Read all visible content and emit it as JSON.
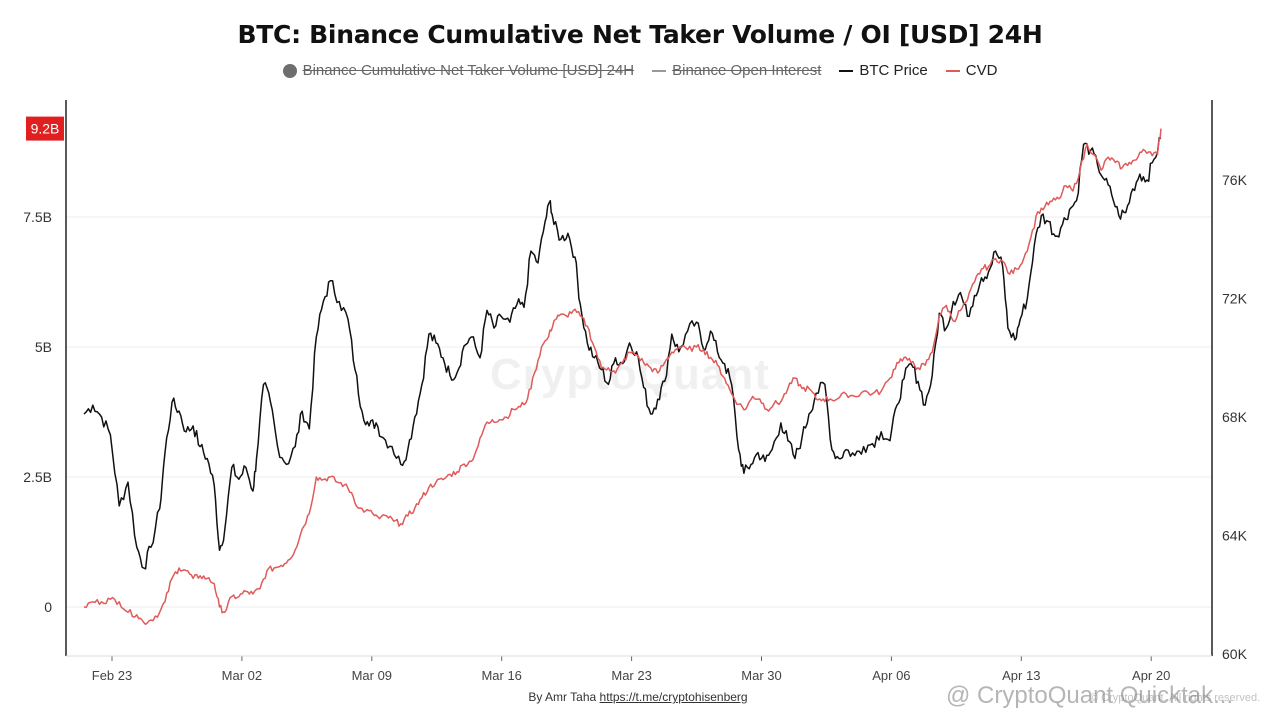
{
  "chart_data": {
    "type": "line",
    "title": "BTC: Binance Cumulative Net Taker Volume / OI [USD] 24H",
    "legend": [
      {
        "label": "Binance Cumulative Net Taker Volume [USD] 24H",
        "color": "#6e6e6e",
        "marker": "dot",
        "hidden": true
      },
      {
        "label": "Binance Open Interest",
        "color": "#999999",
        "marker": "line",
        "hidden": true
      },
      {
        "label": "BTC Price",
        "color": "#111111",
        "marker": "line",
        "hidden": false
      },
      {
        "label": "CVD",
        "color": "#e05a5a",
        "marker": "line",
        "hidden": false
      }
    ],
    "x_ticks": [
      "Feb 23",
      "Mar 02",
      "Mar 09",
      "Mar 16",
      "Mar 23",
      "Mar 30",
      "Apr 06",
      "Apr 13",
      "Apr 20"
    ],
    "x_range_days": [
      -0.5,
      60
    ],
    "y_left": {
      "ticks": [
        "0",
        "2.5B",
        "5B",
        "7.5B"
      ],
      "tick_values": [
        0,
        2.5,
        5,
        7.5
      ],
      "range": [
        -1,
        9.8
      ],
      "unit": "B USD",
      "last_value_label": "9.2B",
      "last_value": 9.2
    },
    "y_right": {
      "ticks": [
        "60K",
        "64K",
        "68K",
        "72K",
        "76K"
      ],
      "tick_values": [
        60,
        64,
        68,
        72,
        76
      ],
      "range": [
        60,
        78.2
      ],
      "unit": "K USD"
    },
    "series": [
      {
        "name": "BTC Price",
        "axis": "right",
        "color": "#111111",
        "points": [
          [
            0,
            68.1
          ],
          [
            0.5,
            68.4
          ],
          [
            1,
            68.0
          ],
          [
            1.5,
            67.4
          ],
          [
            2,
            65.0
          ],
          [
            2.5,
            65.8
          ],
          [
            3,
            63.6
          ],
          [
            3.4,
            62.9
          ],
          [
            3.8,
            63.6
          ],
          [
            4.3,
            64.9
          ],
          [
            4.6,
            66.8
          ],
          [
            5,
            68.5
          ],
          [
            5.4,
            68.2
          ],
          [
            5.8,
            67.5
          ],
          [
            6.2,
            67.7
          ],
          [
            6.6,
            67.0
          ],
          [
            7,
            66.6
          ],
          [
            7.4,
            65.7
          ],
          [
            7.7,
            63.5
          ],
          [
            8,
            64.2
          ],
          [
            8.4,
            66.3
          ],
          [
            8.8,
            65.9
          ],
          [
            9.2,
            66.3
          ],
          [
            9.6,
            65.5
          ],
          [
            9.8,
            66.6
          ],
          [
            10.2,
            69.1
          ],
          [
            10.6,
            68.5
          ],
          [
            11,
            67.0
          ],
          [
            11.5,
            66.4
          ],
          [
            12,
            67.0
          ],
          [
            12.4,
            68.2
          ],
          [
            12.8,
            67.6
          ],
          [
            13.2,
            70.7
          ],
          [
            13.6,
            71.9
          ],
          [
            14,
            72.6
          ],
          [
            14.5,
            71.9
          ],
          [
            15,
            71.3
          ],
          [
            15.4,
            69.6
          ],
          [
            15.8,
            68.2
          ],
          [
            16.2,
            67.7
          ],
          [
            16.6,
            67.8
          ],
          [
            17,
            67.3
          ],
          [
            17.5,
            67.0
          ],
          [
            18,
            66.4
          ],
          [
            18.4,
            66.9
          ],
          [
            18.8,
            68.0
          ],
          [
            19.2,
            69.1
          ],
          [
            19.6,
            70.8
          ],
          [
            20,
            70.5
          ],
          [
            20.4,
            70.0
          ],
          [
            20.8,
            69.4
          ],
          [
            21.2,
            69.5
          ],
          [
            21.6,
            70.4
          ],
          [
            22,
            70.7
          ],
          [
            22.5,
            70.0
          ],
          [
            22.9,
            71.6
          ],
          [
            23.3,
            71.0
          ],
          [
            23.7,
            71.4
          ],
          [
            24.2,
            71.2
          ],
          [
            24.6,
            71.8
          ],
          [
            25,
            71.7
          ],
          [
            25.4,
            73.6
          ],
          [
            25.8,
            73.2
          ],
          [
            26.2,
            74.6
          ],
          [
            26.5,
            75.3
          ],
          [
            26.7,
            74.5
          ],
          [
            27.1,
            74.0
          ],
          [
            27.5,
            74.2
          ],
          [
            27.9,
            73.4
          ],
          [
            28.2,
            71.8
          ],
          [
            28.6,
            70.5
          ],
          [
            29,
            70.0
          ],
          [
            29.4,
            69.6
          ],
          [
            29.8,
            69.1
          ],
          [
            30.2,
            70.0
          ],
          [
            30.6,
            69.8
          ],
          [
            31,
            70.5
          ],
          [
            31.4,
            70.2
          ],
          [
            31.8,
            69.0
          ],
          [
            32.2,
            68.1
          ],
          [
            32.6,
            68.6
          ],
          [
            33,
            69.2
          ],
          [
            33.4,
            70.8
          ],
          [
            33.8,
            70.2
          ],
          [
            34.3,
            70.9
          ],
          [
            34.8,
            71.2
          ],
          [
            35.2,
            70.3
          ],
          [
            35.6,
            70.9
          ],
          [
            36,
            70.2
          ],
          [
            36.4,
            69.8
          ],
          [
            36.8,
            69.1
          ],
          [
            37.2,
            66.9
          ],
          [
            37.5,
            66.1
          ],
          [
            37.9,
            66.4
          ],
          [
            38.3,
            66.8
          ],
          [
            38.7,
            66.5
          ],
          [
            39.1,
            66.9
          ],
          [
            39.6,
            67.8
          ],
          [
            40,
            67.2
          ],
          [
            40.4,
            66.6
          ],
          [
            40.8,
            67.3
          ],
          [
            41.2,
            68.1
          ],
          [
            41.6,
            68.8
          ],
          [
            42.1,
            69.1
          ],
          [
            42.5,
            66.9
          ],
          [
            42.9,
            66.6
          ],
          [
            43.3,
            66.9
          ],
          [
            43.8,
            66.7
          ],
          [
            44.3,
            67.0
          ],
          [
            44.8,
            67.1
          ],
          [
            45.3,
            67.5
          ],
          [
            45.8,
            67.2
          ],
          [
            46.2,
            68.4
          ],
          [
            46.6,
            69.3
          ],
          [
            47,
            69.8
          ],
          [
            47.4,
            69.2
          ],
          [
            47.8,
            68.4
          ],
          [
            48.2,
            69.4
          ],
          [
            48.6,
            71.5
          ],
          [
            49,
            71.0
          ],
          [
            49.4,
            71.9
          ],
          [
            49.8,
            72.2
          ],
          [
            50.2,
            71.4
          ],
          [
            50.6,
            72.1
          ],
          [
            51,
            72.7
          ],
          [
            51.4,
            72.9
          ],
          [
            51.8,
            73.6
          ],
          [
            52.2,
            73.1
          ],
          [
            52.5,
            71.0
          ],
          [
            52.9,
            70.6
          ],
          [
            53.2,
            71.3
          ],
          [
            53.6,
            72.0
          ],
          [
            54,
            73.8
          ],
          [
            54.4,
            74.8
          ],
          [
            54.8,
            74.6
          ],
          [
            55.2,
            74.1
          ],
          [
            55.6,
            74.5
          ],
          [
            56,
            75.0
          ],
          [
            56.4,
            75.3
          ],
          [
            56.8,
            77.2
          ],
          [
            57.2,
            77.0
          ],
          [
            57.6,
            76.5
          ],
          [
            58,
            76.0
          ],
          [
            58.4,
            75.5
          ],
          [
            58.8,
            74.8
          ],
          [
            59.2,
            74.9
          ],
          [
            59.6,
            75.7
          ],
          [
            60,
            76.2
          ],
          [
            60.4,
            76.0
          ],
          [
            60.8,
            76.7
          ],
          [
            61.2,
            77.4
          ]
        ]
      },
      {
        "name": "CVD",
        "axis": "left",
        "color": "#e05a5a",
        "points": [
          [
            0,
            0.0
          ],
          [
            0.5,
            0.1
          ],
          [
            1,
            0.1
          ],
          [
            1.5,
            0.15
          ],
          [
            2,
            0.1
          ],
          [
            2.5,
            -0.1
          ],
          [
            3,
            -0.15
          ],
          [
            3.4,
            -0.3
          ],
          [
            3.8,
            -0.25
          ],
          [
            4.3,
            -0.1
          ],
          [
            4.6,
            0.1
          ],
          [
            5,
            0.55
          ],
          [
            5.4,
            0.75
          ],
          [
            5.8,
            0.7
          ],
          [
            6.2,
            0.55
          ],
          [
            6.6,
            0.6
          ],
          [
            7,
            0.55
          ],
          [
            7.4,
            0.45
          ],
          [
            7.7,
            0.0
          ],
          [
            8,
            -0.1
          ],
          [
            8.4,
            0.2
          ],
          [
            8.8,
            0.2
          ],
          [
            9.2,
            0.3
          ],
          [
            9.6,
            0.25
          ],
          [
            10,
            0.35
          ],
          [
            10.4,
            0.7
          ],
          [
            10.8,
            0.75
          ],
          [
            11.2,
            0.8
          ],
          [
            11.6,
            0.9
          ],
          [
            12,
            1.1
          ],
          [
            12.4,
            1.5
          ],
          [
            12.8,
            1.8
          ],
          [
            13.2,
            2.5
          ],
          [
            13.6,
            2.45
          ],
          [
            14,
            2.5
          ],
          [
            14.4,
            2.4
          ],
          [
            14.8,
            2.35
          ],
          [
            15.2,
            2.2
          ],
          [
            15.6,
            1.9
          ],
          [
            16,
            1.85
          ],
          [
            16.4,
            1.8
          ],
          [
            16.8,
            1.7
          ],
          [
            17.2,
            1.75
          ],
          [
            17.6,
            1.65
          ],
          [
            18,
            1.6
          ],
          [
            18.4,
            1.75
          ],
          [
            18.8,
            1.9
          ],
          [
            19.2,
            2.1
          ],
          [
            19.6,
            2.3
          ],
          [
            20,
            2.4
          ],
          [
            20.4,
            2.45
          ],
          [
            20.8,
            2.55
          ],
          [
            21.2,
            2.6
          ],
          [
            21.6,
            2.75
          ],
          [
            22,
            2.8
          ],
          [
            22.4,
            3.1
          ],
          [
            22.8,
            3.5
          ],
          [
            23.2,
            3.6
          ],
          [
            23.6,
            3.6
          ],
          [
            24,
            3.65
          ],
          [
            24.4,
            3.8
          ],
          [
            24.8,
            3.85
          ],
          [
            25.2,
            4.0
          ],
          [
            25.6,
            4.5
          ],
          [
            26,
            5.0
          ],
          [
            26.4,
            5.2
          ],
          [
            26.7,
            5.5
          ],
          [
            27,
            5.6
          ],
          [
            27.4,
            5.6
          ],
          [
            27.8,
            5.7
          ],
          [
            28.2,
            5.6
          ],
          [
            28.6,
            5.4
          ],
          [
            29,
            5.0
          ],
          [
            29.4,
            4.6
          ],
          [
            29.8,
            4.6
          ],
          [
            30.2,
            4.5
          ],
          [
            30.6,
            4.7
          ],
          [
            31,
            4.9
          ],
          [
            31.4,
            4.85
          ],
          [
            31.8,
            4.7
          ],
          [
            32.2,
            4.6
          ],
          [
            32.6,
            4.5
          ],
          [
            33,
            4.7
          ],
          [
            33.4,
            4.9
          ],
          [
            33.8,
            5.0
          ],
          [
            34.3,
            4.95
          ],
          [
            34.8,
            5.0
          ],
          [
            35.2,
            4.95
          ],
          [
            35.6,
            4.8
          ],
          [
            36,
            4.65
          ],
          [
            36.4,
            4.4
          ],
          [
            36.8,
            4.1
          ],
          [
            37.2,
            3.9
          ],
          [
            37.6,
            3.8
          ],
          [
            38,
            4.05
          ],
          [
            38.4,
            4.0
          ],
          [
            38.8,
            3.8
          ],
          [
            39.2,
            3.9
          ],
          [
            39.6,
            3.95
          ],
          [
            40,
            4.2
          ],
          [
            40.4,
            4.4
          ],
          [
            40.8,
            4.2
          ],
          [
            41.2,
            4.2
          ],
          [
            41.6,
            4.0
          ],
          [
            42,
            4.0
          ],
          [
            42.4,
            4.0
          ],
          [
            42.8,
            4.0
          ],
          [
            43.3,
            4.1
          ],
          [
            43.8,
            4.05
          ],
          [
            44.3,
            4.15
          ],
          [
            44.8,
            4.1
          ],
          [
            45.3,
            4.15
          ],
          [
            45.8,
            4.4
          ],
          [
            46.2,
            4.7
          ],
          [
            46.6,
            4.8
          ],
          [
            47,
            4.7
          ],
          [
            47.4,
            4.6
          ],
          [
            47.8,
            4.65
          ],
          [
            48.2,
            4.9
          ],
          [
            48.6,
            5.6
          ],
          [
            49,
            5.8
          ],
          [
            49.4,
            5.5
          ],
          [
            49.8,
            5.7
          ],
          [
            50.2,
            5.9
          ],
          [
            50.6,
            6.25
          ],
          [
            51,
            6.5
          ],
          [
            51.4,
            6.55
          ],
          [
            51.8,
            6.7
          ],
          [
            52.2,
            6.65
          ],
          [
            52.6,
            6.4
          ],
          [
            53,
            6.5
          ],
          [
            53.4,
            6.7
          ],
          [
            53.8,
            7.1
          ],
          [
            54.2,
            7.6
          ],
          [
            54.6,
            7.7
          ],
          [
            55,
            7.8
          ],
          [
            55.4,
            7.85
          ],
          [
            55.8,
            8.1
          ],
          [
            56.2,
            8.0
          ],
          [
            56.6,
            8.4
          ],
          [
            57,
            8.9
          ],
          [
            57.4,
            8.7
          ],
          [
            57.8,
            8.4
          ],
          [
            58.2,
            8.65
          ],
          [
            58.6,
            8.55
          ],
          [
            59,
            8.45
          ],
          [
            59.4,
            8.55
          ],
          [
            59.8,
            8.6
          ],
          [
            60.2,
            8.8
          ],
          [
            60.6,
            8.75
          ],
          [
            61,
            8.7
          ],
          [
            61.2,
            9.2
          ]
        ]
      }
    ]
  },
  "watermark": {
    "brand": "CryptoQuant",
    "handle": "@ CryptoQuant Quicktak...",
    "rights": "© CryptoQuant. All rights reserved."
  },
  "footer": {
    "credit_prefix": "By Amr Taha",
    "credit_link": "https://t.me/cryptohisenberg"
  }
}
